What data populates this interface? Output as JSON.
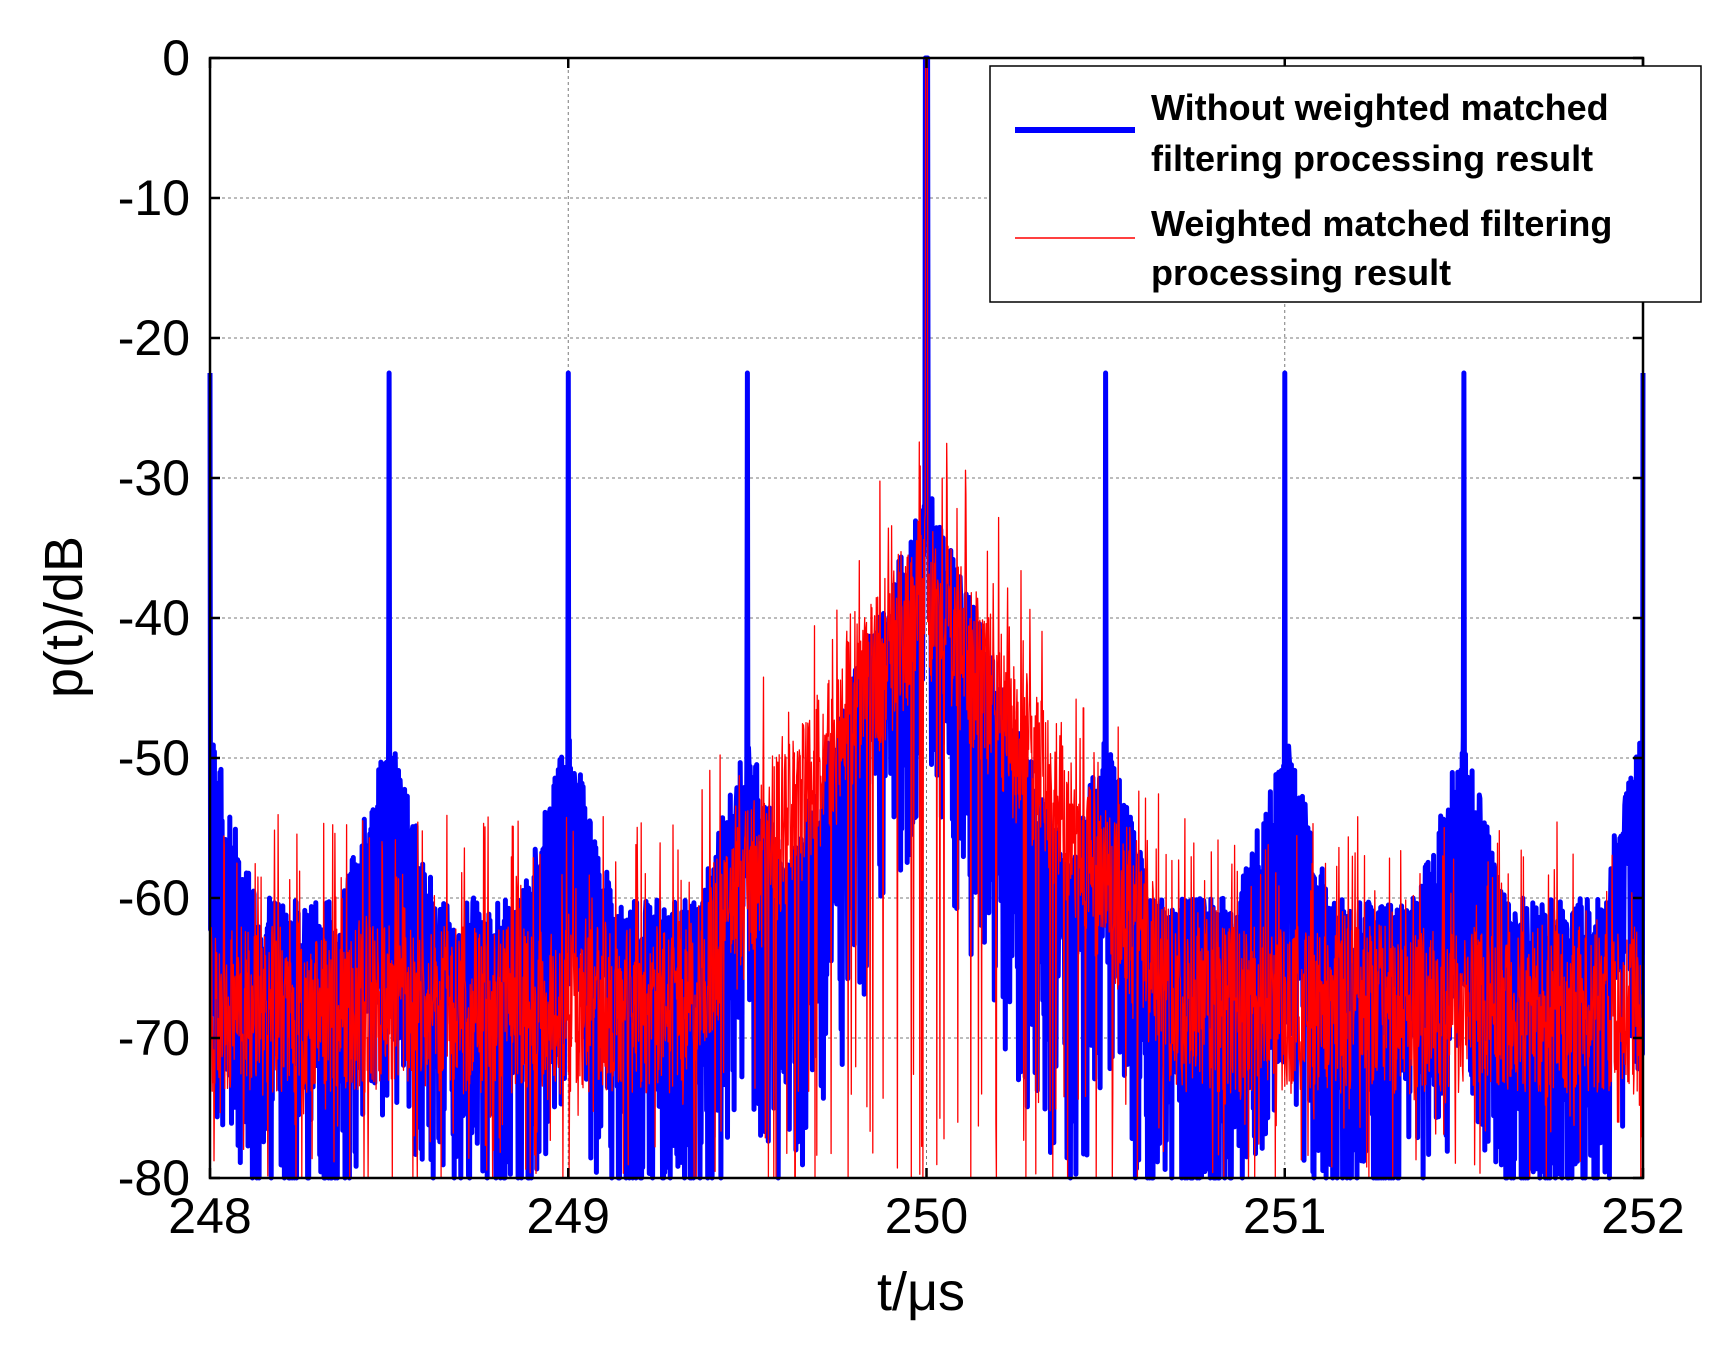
{
  "chart_data": {
    "type": "line",
    "xlabel": "t/μs",
    "ylabel": "p(t)/dB",
    "xlim": [
      248,
      252
    ],
    "ylim": [
      -80,
      0
    ],
    "xticks": [
      248,
      249,
      250,
      251,
      252
    ],
    "yticks": [
      0,
      -10,
      -20,
      -30,
      -40,
      -50,
      -60,
      -70,
      -80
    ],
    "xtick_labels": [
      "248",
      "249",
      "250",
      "251",
      "252"
    ],
    "ytick_labels": [
      "0",
      "-10",
      "-20",
      "-30",
      "-40",
      "-50",
      "-60",
      "-70",
      "-80"
    ],
    "grid": true,
    "legend_position": "top-right",
    "series": [
      {
        "name": "Without weighted matched filtering processing result",
        "name_lines": [
          "Without weighted matched",
          "filtering processing result"
        ],
        "color": "#0000ff",
        "linewidth": "thick",
        "main_peak": {
          "x": 250.0,
          "y": 0
        },
        "periodic_spikes": {
          "x": [
            248.0,
            248.5,
            249.0,
            249.5,
            250.5,
            251.0,
            251.5,
            252.0
          ],
          "y": -22.5
        },
        "spike_shoulder_level_db": -40,
        "near_peak_sidelobe_envelope": [
          {
            "x": 249.6,
            "y": -43
          },
          {
            "x": 249.75,
            "y": -30
          },
          {
            "x": 249.9,
            "y": -25
          },
          {
            "x": 250.0,
            "y": -20
          },
          {
            "x": 250.1,
            "y": -28
          },
          {
            "x": 250.25,
            "y": -33
          },
          {
            "x": 250.4,
            "y": -44
          }
        ],
        "noise_floor_db": [
          -80,
          -55
        ]
      },
      {
        "name": "Weighted matched filtering processing result",
        "name_lines": [
          "Weighted matched filtering",
          "processing result"
        ],
        "color": "#ff0000",
        "linewidth": "thin",
        "main_peak": {
          "x": 250.0,
          "y": 0
        },
        "near_peak_sidelobe_envelope": [
          {
            "x": 249.7,
            "y": -44
          },
          {
            "x": 249.9,
            "y": -30
          },
          {
            "x": 250.0,
            "y": -20
          },
          {
            "x": 250.1,
            "y": -32
          },
          {
            "x": 250.3,
            "y": -45
          }
        ],
        "noise_floor_db": [
          -80,
          -55
        ],
        "typical_level_db": -63
      }
    ]
  }
}
